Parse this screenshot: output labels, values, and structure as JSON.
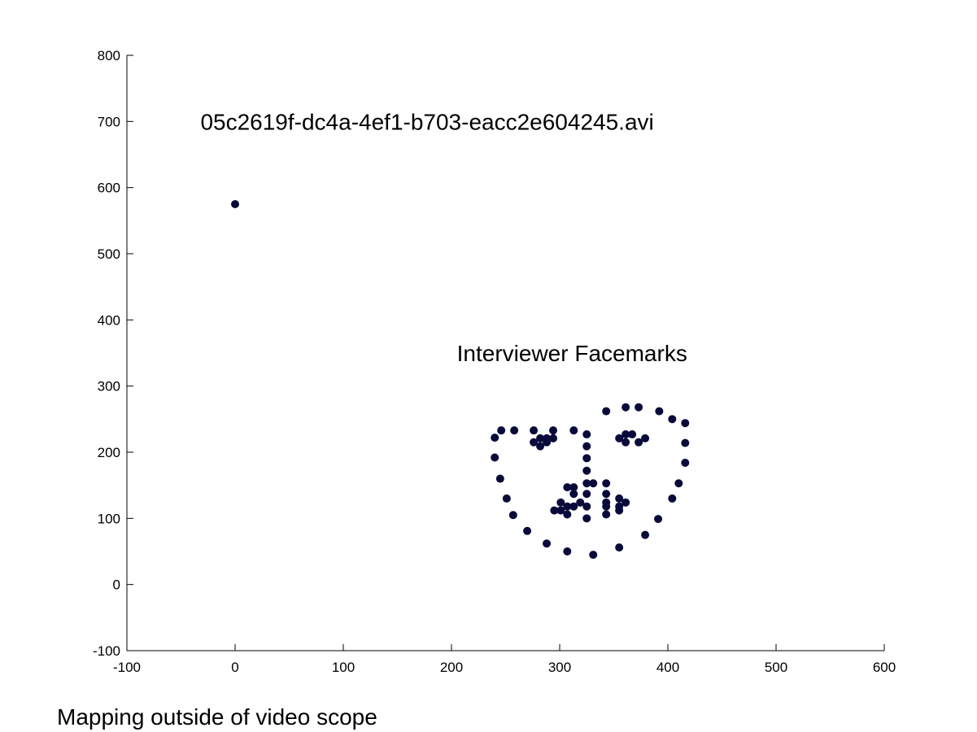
{
  "chart_data": {
    "type": "scatter",
    "title": "",
    "xlabel": "",
    "ylabel": "",
    "xlim": [
      -100,
      600
    ],
    "ylim": [
      -100,
      800
    ],
    "x_ticks": [
      -100,
      0,
      100,
      200,
      300,
      400,
      500,
      600
    ],
    "y_ticks": [
      -100,
      0,
      100,
      200,
      300,
      400,
      500,
      600,
      700,
      800
    ],
    "grid": false,
    "legend": "none",
    "marker_color": "#0a0a3a",
    "annotations": [
      {
        "text": "05c2619f-dc4a-4ef1-b703-eacc2e604245.avi",
        "x": -32,
        "y": 700
      },
      {
        "text": "Interviewer Facemarks",
        "x": 205,
        "y": 350
      }
    ],
    "series": [
      {
        "points": [
          [
            0,
            575
          ],
          [
            240,
            222
          ],
          [
            240,
            192
          ],
          [
            245,
            160
          ],
          [
            251,
            130
          ],
          [
            257,
            105
          ],
          [
            270,
            81
          ],
          [
            288,
            62
          ],
          [
            307,
            50
          ],
          [
            331,
            45
          ],
          [
            355,
            56
          ],
          [
            379,
            75
          ],
          [
            391,
            99
          ],
          [
            404,
            130
          ],
          [
            410,
            153
          ],
          [
            416,
            184
          ],
          [
            416,
            214
          ],
          [
            416,
            244
          ],
          [
            246,
            233
          ],
          [
            258,
            233
          ],
          [
            276,
            233
          ],
          [
            294,
            233
          ],
          [
            313,
            233
          ],
          [
            343,
            262
          ],
          [
            361,
            268
          ],
          [
            373,
            268
          ],
          [
            392,
            262
          ],
          [
            404,
            250
          ],
          [
            325,
            227
          ],
          [
            325,
            209
          ],
          [
            325,
            191
          ],
          [
            325,
            172
          ],
          [
            325,
            153
          ],
          [
            307,
            147
          ],
          [
            313,
            147
          ],
          [
            331,
            153
          ],
          [
            343,
            153
          ],
          [
            343,
            137
          ],
          [
            276,
            215
          ],
          [
            282,
            221
          ],
          [
            288,
            221
          ],
          [
            294,
            221
          ],
          [
            288,
            215
          ],
          [
            282,
            209
          ],
          [
            355,
            221
          ],
          [
            361,
            227
          ],
          [
            367,
            227
          ],
          [
            379,
            221
          ],
          [
            373,
            215
          ],
          [
            361,
            215
          ],
          [
            295,
            112
          ],
          [
            301,
            112
          ],
          [
            301,
            124
          ],
          [
            307,
            118
          ],
          [
            313,
            118
          ],
          [
            319,
            124
          ],
          [
            325,
            118
          ],
          [
            325,
            100
          ],
          [
            307,
            106
          ],
          [
            313,
            137
          ],
          [
            325,
            137
          ],
          [
            343,
            106
          ],
          [
            343,
            118
          ],
          [
            343,
            124
          ],
          [
            355,
            112
          ],
          [
            355,
            118
          ],
          [
            355,
            130
          ],
          [
            361,
            124
          ]
        ]
      }
    ]
  },
  "caption": "Mapping outside of video scope"
}
